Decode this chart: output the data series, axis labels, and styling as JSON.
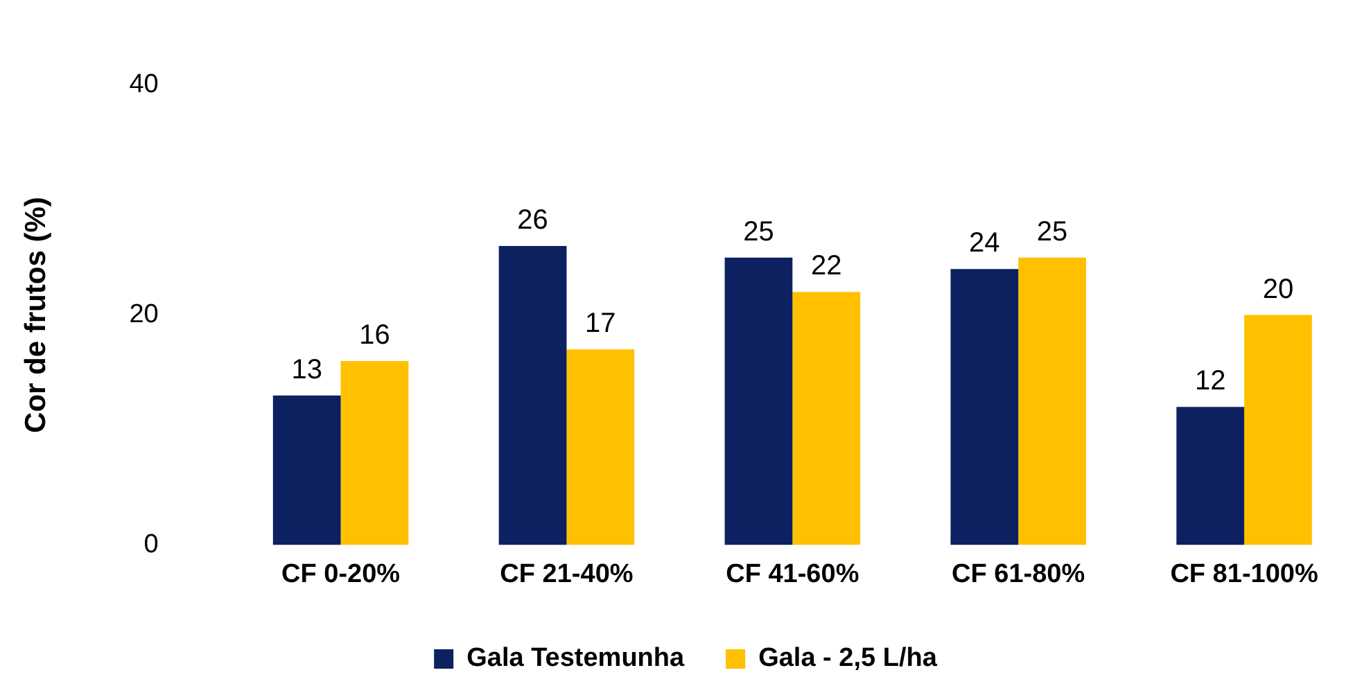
{
  "chart_data": {
    "type": "bar",
    "ylabel": "Cor de frutos (%)",
    "categories": [
      "CF 0-20%",
      "CF 21-40%",
      "CF 41-60%",
      "CF 61-80%",
      "CF 81-100%"
    ],
    "series": [
      {
        "name": "Gala Testemunha",
        "color": "#0d2161",
        "values": [
          13,
          26,
          25,
          24,
          12
        ]
      },
      {
        "name": "Gala - 2,5 L/ha",
        "color": "#ffc000",
        "values": [
          16,
          17,
          22,
          25,
          20
        ]
      }
    ],
    "ylim": [
      0,
      40
    ],
    "yticks": [
      0,
      20,
      40
    ],
    "grid": false,
    "legend": "bottom",
    "data_labels": true
  }
}
